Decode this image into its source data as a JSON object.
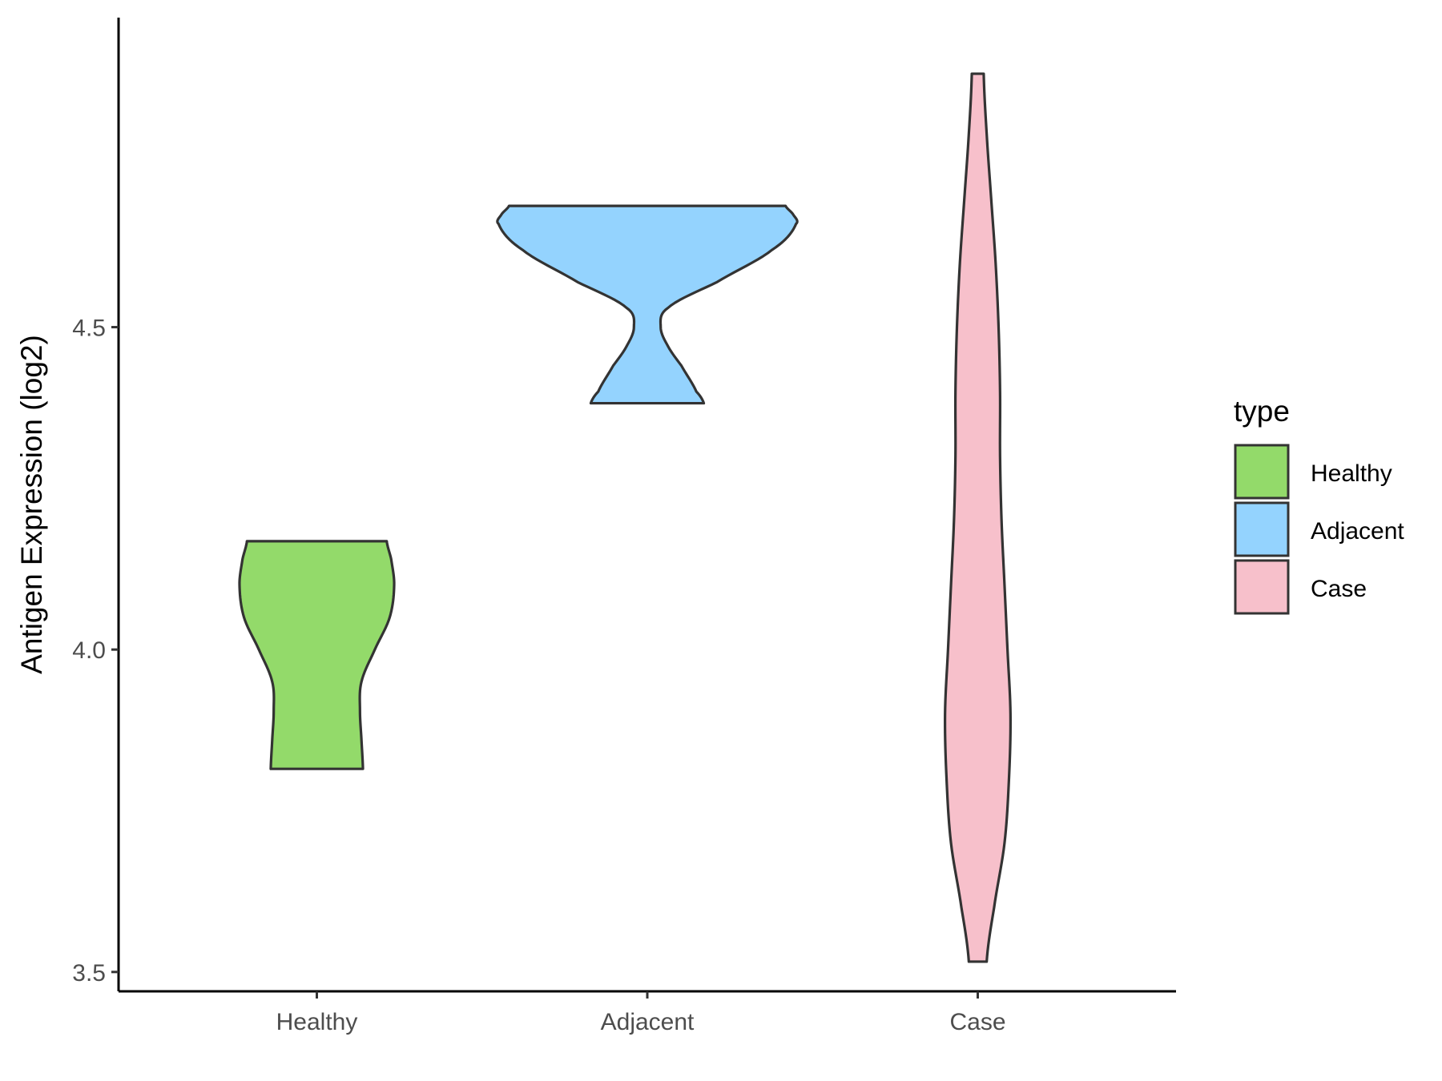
{
  "chart_data": {
    "type": "violin",
    "title": "",
    "xlabel": "",
    "ylabel": "Antigen Expression (log2)",
    "categories": [
      "Healthy",
      "Adjacent",
      "Case"
    ],
    "ylim": [
      3.47,
      4.98
    ],
    "yticks": [
      3.5,
      4.0,
      4.5
    ],
    "ytick_labels": [
      "3.5",
      "4.0",
      "4.5"
    ],
    "colors": [
      "#93DA6A",
      "#94D3FE",
      "#F7C0CB"
    ],
    "outline_color": "#333333",
    "series": [
      {
        "category": "Healthy",
        "min": 3.815,
        "max": 4.168,
        "profile": [
          [
            3.815,
            0.31
          ],
          [
            3.86,
            0.3
          ],
          [
            3.905,
            0.29
          ],
          [
            3.95,
            0.3
          ],
          [
            4.0,
            0.39
          ],
          [
            4.05,
            0.49
          ],
          [
            4.1,
            0.52
          ],
          [
            4.14,
            0.5
          ],
          [
            4.168,
            0.47
          ]
        ]
      },
      {
        "category": "Adjacent",
        "min": 4.382,
        "max": 4.688,
        "profile": [
          [
            4.382,
            0.38
          ],
          [
            4.4,
            0.33
          ],
          [
            4.44,
            0.23
          ],
          [
            4.47,
            0.14
          ],
          [
            4.5,
            0.09
          ],
          [
            4.53,
            0.14
          ],
          [
            4.57,
            0.47
          ],
          [
            4.62,
            0.84
          ],
          [
            4.66,
            1.0
          ],
          [
            4.675,
            0.98
          ],
          [
            4.688,
            0.93
          ]
        ]
      },
      {
        "category": "Case",
        "min": 3.516,
        "max": 4.893,
        "profile": [
          [
            3.516,
            0.06
          ],
          [
            3.6,
            0.11
          ],
          [
            3.7,
            0.18
          ],
          [
            3.8,
            0.21
          ],
          [
            3.9,
            0.22
          ],
          [
            4.0,
            0.2
          ],
          [
            4.1,
            0.18
          ],
          [
            4.2,
            0.16
          ],
          [
            4.3,
            0.15
          ],
          [
            4.4,
            0.15
          ],
          [
            4.5,
            0.14
          ],
          [
            4.6,
            0.12
          ],
          [
            4.7,
            0.09
          ],
          [
            4.8,
            0.06
          ],
          [
            4.893,
            0.04
          ]
        ]
      }
    ],
    "legend": {
      "title": "type",
      "position": "right",
      "entries": [
        "Healthy",
        "Adjacent",
        "Case"
      ]
    },
    "grid": false
  }
}
